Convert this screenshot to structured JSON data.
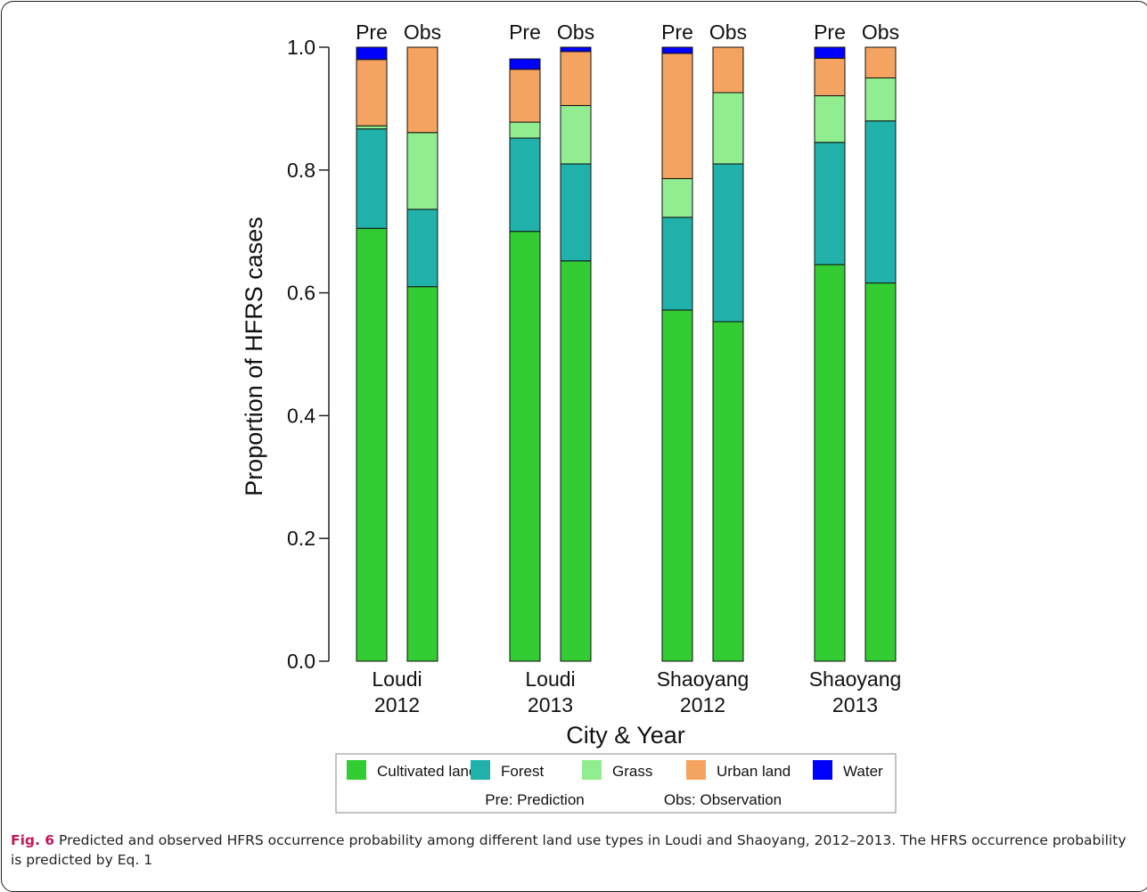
{
  "chart_data": {
    "type": "stacked-bar",
    "ylabel": "Proportion of HFRS cases",
    "xlabel": "City & Year",
    "ylim": [
      0,
      1
    ],
    "yticks": [
      "0.0",
      "0.2",
      "0.4",
      "0.6",
      "0.8",
      "1.0"
    ],
    "ytick_values": [
      0,
      0.2,
      0.4,
      0.6,
      0.8,
      1.0
    ],
    "groups": [
      {
        "label_line1": "Loudi",
        "label_line2": "2012"
      },
      {
        "label_line1": "Loudi",
        "label_line2": "2013"
      },
      {
        "label_line1": "Shaoyang",
        "label_line2": "2012"
      },
      {
        "label_line1": "Shaoyang",
        "label_line2": "2013"
      }
    ],
    "bar_labels": [
      "Pre",
      "Obs",
      "Pre",
      "Obs",
      "Pre",
      "Obs",
      "Pre",
      "Obs"
    ],
    "series": [
      {
        "name": "Cultivated land",
        "color": "#33cc33",
        "values": [
          0.705,
          0.61,
          0.7,
          0.652,
          0.572,
          0.553,
          0.646,
          0.616
        ]
      },
      {
        "name": "Forest",
        "color": "#20b2aa",
        "values": [
          0.162,
          0.126,
          0.152,
          0.158,
          0.151,
          0.257,
          0.199,
          0.264
        ]
      },
      {
        "name": "Grass",
        "color": "#90ee90",
        "values": [
          0.005,
          0.125,
          0.026,
          0.095,
          0.063,
          0.116,
          0.076,
          0.07
        ]
      },
      {
        "name": "Urban land",
        "color": "#f4a460",
        "values": [
          0.108,
          0.139,
          0.086,
          0.088,
          0.204,
          0.074,
          0.061,
          0.05
        ]
      },
      {
        "name": "Water",
        "color": "#0000ff",
        "values": [
          0.02,
          0.0,
          0.017,
          0.007,
          0.01,
          0.0,
          0.018,
          0.0
        ]
      }
    ],
    "legend": {
      "position": "bottom",
      "items": [
        "Cultivated land",
        "Forest",
        "Grass",
        "Urban land",
        "Water"
      ],
      "note_pre": "Pre: Prediction",
      "note_obs": "Obs: Observation"
    }
  },
  "caption": {
    "label": "Fig. 6",
    "text": " Predicted and observed HFRS occurrence probability among different land use types in Loudi and Shaoyang, 2012–2013. The HFRS occurrence probability is predicted by Eq. 1"
  }
}
